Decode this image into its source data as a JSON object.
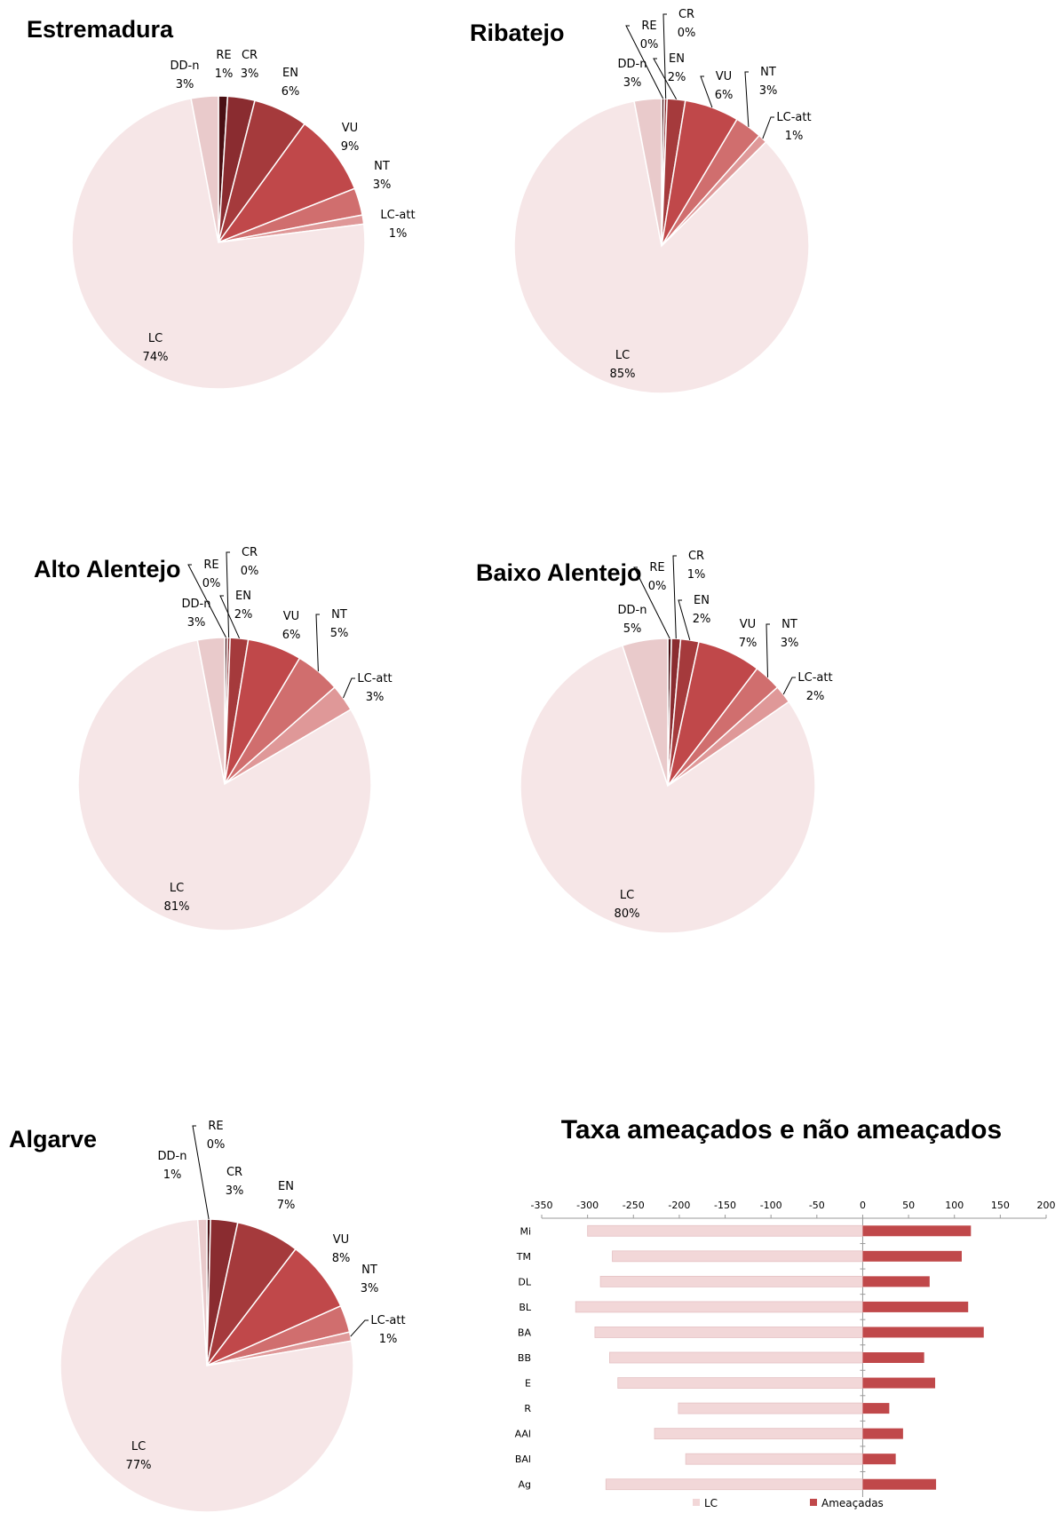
{
  "chart_data": [
    {
      "type": "pie",
      "title": "Estremadura",
      "slices": [
        {
          "label": "RE",
          "value": 1,
          "value_label": "1%",
          "color": "#4a1014"
        },
        {
          "label": "CR",
          "value": 3,
          "value_label": "3%",
          "color": "#8a2c30"
        },
        {
          "label": "EN",
          "value": 6,
          "value_label": "6%",
          "color": "#a53a3c"
        },
        {
          "label": "VU",
          "value": 9,
          "value_label": "9%",
          "color": "#c0484a"
        },
        {
          "label": "NT",
          "value": 3,
          "value_label": "3%",
          "color": "#d06e6e"
        },
        {
          "label": "LC-att",
          "value": 1,
          "value_label": "1%",
          "color": "#df9898"
        },
        {
          "label": "LC",
          "value": 74,
          "value_label": "74%",
          "color": "#f6e6e7"
        },
        {
          "label": "DD-n",
          "value": 3,
          "value_label": "3%",
          "color": "#e9cacb"
        }
      ]
    },
    {
      "type": "pie",
      "title": "Ribatejo",
      "slices": [
        {
          "label": "RE",
          "value": 0.3,
          "value_label": "0%",
          "color": "#4a1014"
        },
        {
          "label": "CR",
          "value": 0.3,
          "value_label": "0%",
          "color": "#8a2c30"
        },
        {
          "label": "EN",
          "value": 2,
          "value_label": "2%",
          "color": "#a53a3c"
        },
        {
          "label": "VU",
          "value": 6,
          "value_label": "6%",
          "color": "#c0484a"
        },
        {
          "label": "NT",
          "value": 3,
          "value_label": "3%",
          "color": "#d06e6e"
        },
        {
          "label": "LC-att",
          "value": 1,
          "value_label": "1%",
          "color": "#df9898"
        },
        {
          "label": "LC",
          "value": 85,
          "value_label": "85%",
          "color": "#f6e6e7"
        },
        {
          "label": "DD-n",
          "value": 3,
          "value_label": "3%",
          "color": "#e9cacb"
        }
      ]
    },
    {
      "type": "pie",
      "title": "Alto Alentejo",
      "slices": [
        {
          "label": "RE",
          "value": 0.3,
          "value_label": "0%",
          "color": "#4a1014"
        },
        {
          "label": "CR",
          "value": 0.3,
          "value_label": "0%",
          "color": "#8a2c30"
        },
        {
          "label": "EN",
          "value": 2,
          "value_label": "2%",
          "color": "#a53a3c"
        },
        {
          "label": "VU",
          "value": 6,
          "value_label": "6%",
          "color": "#c0484a"
        },
        {
          "label": "NT",
          "value": 5,
          "value_label": "5%",
          "color": "#d06e6e"
        },
        {
          "label": "LC-att",
          "value": 3,
          "value_label": "3%",
          "color": "#df9898"
        },
        {
          "label": "LC",
          "value": 81,
          "value_label": "81%",
          "color": "#f6e6e7"
        },
        {
          "label": "DD-n",
          "value": 3,
          "value_label": "3%",
          "color": "#e9cacb"
        }
      ]
    },
    {
      "type": "pie",
      "title": "Baixo Alentejo",
      "slices": [
        {
          "label": "RE",
          "value": 0.4,
          "value_label": "0%",
          "color": "#4a1014"
        },
        {
          "label": "CR",
          "value": 1,
          "value_label": "1%",
          "color": "#8a2c30"
        },
        {
          "label": "EN",
          "value": 2,
          "value_label": "2%",
          "color": "#a53a3c"
        },
        {
          "label": "VU",
          "value": 7,
          "value_label": "7%",
          "color": "#c0484a"
        },
        {
          "label": "NT",
          "value": 3,
          "value_label": "3%",
          "color": "#d06e6e"
        },
        {
          "label": "LC-att",
          "value": 2,
          "value_label": "2%",
          "color": "#df9898"
        },
        {
          "label": "LC",
          "value": 80,
          "value_label": "80%",
          "color": "#f6e6e7"
        },
        {
          "label": "DD-n",
          "value": 5,
          "value_label": "5%",
          "color": "#e9cacb"
        }
      ]
    },
    {
      "type": "pie",
      "title": "Algarve",
      "slices": [
        {
          "label": "RE",
          "value": 0.4,
          "value_label": "0%",
          "color": "#4a1014"
        },
        {
          "label": "CR",
          "value": 3,
          "value_label": "3%",
          "color": "#8a2c30"
        },
        {
          "label": "EN",
          "value": 7,
          "value_label": "7%",
          "color": "#a53a3c"
        },
        {
          "label": "VU",
          "value": 8,
          "value_label": "8%",
          "color": "#c0484a"
        },
        {
          "label": "NT",
          "value": 3,
          "value_label": "3%",
          "color": "#d06e6e"
        },
        {
          "label": "LC-att",
          "value": 1,
          "value_label": "1%",
          "color": "#df9898"
        },
        {
          "label": "LC",
          "value": 77,
          "value_label": "77%",
          "color": "#f6e6e7"
        },
        {
          "label": "DD-n",
          "value": 1,
          "value_label": "1%",
          "color": "#e9cacb"
        }
      ]
    },
    {
      "type": "bar",
      "orientation": "horizontal",
      "title": "Taxa ameaçados e não ameaçados",
      "categories": [
        "Mi",
        "TM",
        "DL",
        "BL",
        "BA",
        "BB",
        "E",
        "R",
        "AAl",
        "BAl",
        "Ag"
      ],
      "xlim": [
        -350,
        200
      ],
      "x_ticks": [
        -350,
        -300,
        -250,
        -200,
        -150,
        -100,
        -50,
        0,
        50,
        100,
        150,
        200
      ],
      "series": [
        {
          "name": "LC",
          "color": "#f2d7d8",
          "values": [
            -300,
            -273,
            -286,
            -313,
            -292,
            -276,
            -267,
            -201,
            -227,
            -193,
            -280
          ]
        },
        {
          "name": "Ameaçadas",
          "color": "#c0484a",
          "values": [
            118,
            108,
            73,
            115,
            132,
            67,
            79,
            29,
            44,
            36,
            80
          ]
        }
      ],
      "legend_position": "bottom"
    }
  ]
}
